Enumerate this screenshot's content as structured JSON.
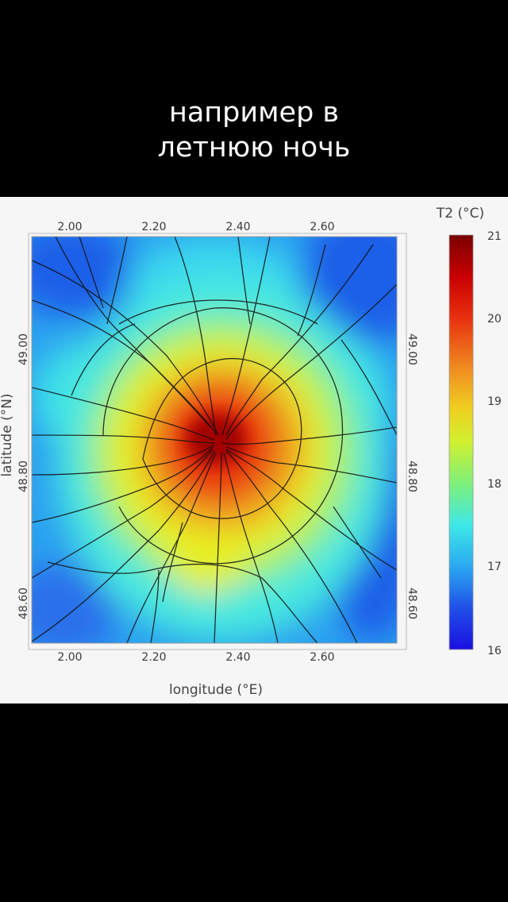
{
  "caption": {
    "line1": "например в",
    "line2": "летнюю ночь"
  },
  "map": {
    "variable_label": "T2 (°C)",
    "x_axis_label": "longitude (°E)",
    "y_axis_label": "latitude (°N)",
    "lon_ticks": [
      "2.00",
      "2.20",
      "2.40",
      "2.60"
    ],
    "lat_ticks": [
      "49.00",
      "48.80",
      "48.60"
    ],
    "colorbar_ticks": [
      "21",
      "20",
      "19",
      "18",
      "17",
      "16"
    ],
    "colorbar_range": [
      16,
      21
    ],
    "colors": {
      "min": "#1a1ae0",
      "low": "#2a8cf0",
      "mid": "#3ee8e8",
      "warm": "#e6f020",
      "hot": "#e83010",
      "max": "#7a0000"
    }
  }
}
